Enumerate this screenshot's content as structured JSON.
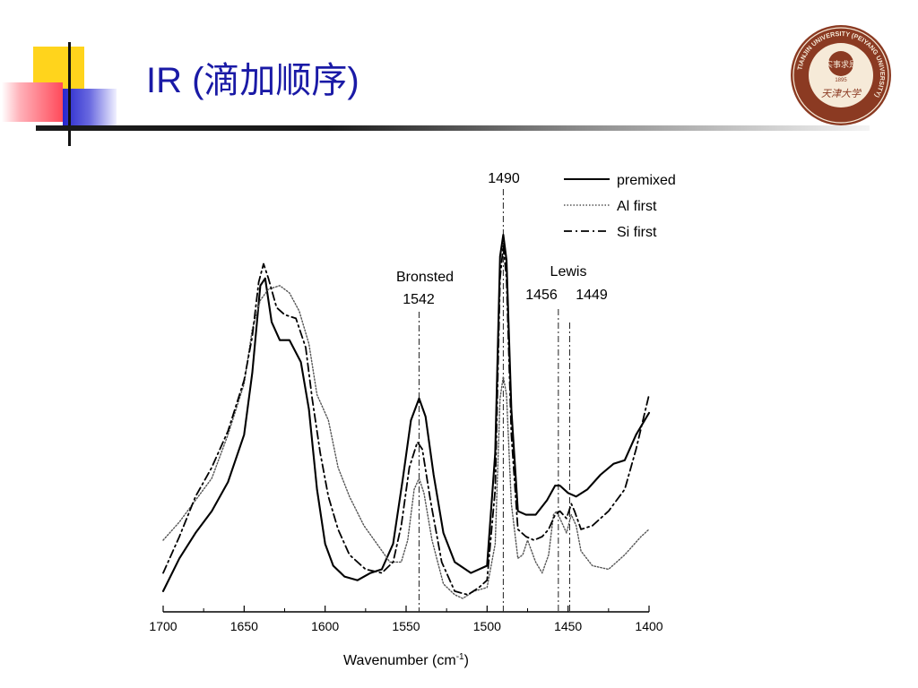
{
  "slide": {
    "title": "IR (滴加顺序)",
    "logo": {
      "ring_text": "TIANJIN UNIVERSITY (PEIYANG UNIVERSITY)",
      "year": "1895",
      "motto": "实事求是",
      "calligraphy": "天津大学",
      "colors": {
        "ring": "#8b3a22",
        "inner": "#f6ead8"
      }
    },
    "colors": {
      "title": "#1a1aa6",
      "accent_yellow": "#ffd41c",
      "accent_red": "#ff5060",
      "accent_blue": "#3030d0"
    }
  },
  "chart_data": {
    "type": "line",
    "xlabel": "Wavenumber (cm",
    "xlabel_sup": "-1",
    "xlabel_close": ")",
    "xlim": [
      1700,
      1400
    ],
    "ylim": [
      0,
      1
    ],
    "x_reversed": true,
    "grid": false,
    "legend_position": "top-right",
    "x_ticks": [
      {
        "value": 1700,
        "label": "1700"
      },
      {
        "value": 1650,
        "label": "1650"
      },
      {
        "value": 1600,
        "label": "1600"
      },
      {
        "value": 1550,
        "label": "1550"
      },
      {
        "value": 1500,
        "label": "1500"
      },
      {
        "value": 1450,
        "label": "1450"
      },
      {
        "value": 1400,
        "label": "1400"
      }
    ],
    "annotations": [
      {
        "x": 1542,
        "lines": [
          "Bronsted",
          "1542"
        ]
      },
      {
        "x": 1490,
        "lines": [
          "1490"
        ]
      },
      {
        "x": 1456,
        "lines": [
          "Lewis",
          "1456"
        ]
      },
      {
        "x": 1449,
        "lines": [
          "1449"
        ]
      }
    ],
    "series": [
      {
        "name": "premixed",
        "style": "solid",
        "points": [
          [
            1700,
            0.02
          ],
          [
            1690,
            0.11
          ],
          [
            1680,
            0.18
          ],
          [
            1670,
            0.24
          ],
          [
            1660,
            0.32
          ],
          [
            1650,
            0.45
          ],
          [
            1645,
            0.62
          ],
          [
            1640,
            0.86
          ],
          [
            1637,
            0.88
          ],
          [
            1633,
            0.76
          ],
          [
            1628,
            0.71
          ],
          [
            1622,
            0.71
          ],
          [
            1615,
            0.65
          ],
          [
            1610,
            0.52
          ],
          [
            1605,
            0.3
          ],
          [
            1600,
            0.15
          ],
          [
            1595,
            0.09
          ],
          [
            1588,
            0.06
          ],
          [
            1580,
            0.05
          ],
          [
            1572,
            0.07
          ],
          [
            1565,
            0.08
          ],
          [
            1558,
            0.15
          ],
          [
            1552,
            0.33
          ],
          [
            1547,
            0.49
          ],
          [
            1542,
            0.55
          ],
          [
            1538,
            0.5
          ],
          [
            1533,
            0.34
          ],
          [
            1527,
            0.18
          ],
          [
            1520,
            0.1
          ],
          [
            1510,
            0.07
          ],
          [
            1500,
            0.09
          ],
          [
            1495,
            0.4
          ],
          [
            1492,
            0.94
          ],
          [
            1490,
            1.0
          ],
          [
            1488,
            0.93
          ],
          [
            1485,
            0.52
          ],
          [
            1481,
            0.24
          ],
          [
            1476,
            0.23
          ],
          [
            1470,
            0.23
          ],
          [
            1463,
            0.27
          ],
          [
            1458,
            0.31
          ],
          [
            1455,
            0.31
          ],
          [
            1450,
            0.29
          ],
          [
            1445,
            0.28
          ],
          [
            1438,
            0.3
          ],
          [
            1430,
            0.34
          ],
          [
            1422,
            0.37
          ],
          [
            1415,
            0.38
          ],
          [
            1408,
            0.45
          ],
          [
            1400,
            0.51
          ]
        ]
      },
      {
        "name": "Al first",
        "style": "dotted",
        "points": [
          [
            1700,
            0.16
          ],
          [
            1690,
            0.21
          ],
          [
            1680,
            0.27
          ],
          [
            1670,
            0.33
          ],
          [
            1660,
            0.45
          ],
          [
            1650,
            0.59
          ],
          [
            1645,
            0.74
          ],
          [
            1640,
            0.82
          ],
          [
            1635,
            0.85
          ],
          [
            1628,
            0.86
          ],
          [
            1622,
            0.84
          ],
          [
            1616,
            0.79
          ],
          [
            1610,
            0.7
          ],
          [
            1605,
            0.56
          ],
          [
            1598,
            0.49
          ],
          [
            1592,
            0.36
          ],
          [
            1585,
            0.28
          ],
          [
            1576,
            0.2
          ],
          [
            1568,
            0.15
          ],
          [
            1560,
            0.1
          ],
          [
            1553,
            0.1
          ],
          [
            1549,
            0.16
          ],
          [
            1545,
            0.3
          ],
          [
            1542,
            0.33
          ],
          [
            1539,
            0.29
          ],
          [
            1534,
            0.16
          ],
          [
            1527,
            0.04
          ],
          [
            1520,
            0.01
          ],
          [
            1515,
            0.0
          ],
          [
            1508,
            0.02
          ],
          [
            1500,
            0.03
          ],
          [
            1495,
            0.15
          ],
          [
            1492,
            0.55
          ],
          [
            1490,
            0.61
          ],
          [
            1488,
            0.56
          ],
          [
            1485,
            0.26
          ],
          [
            1481,
            0.11
          ],
          [
            1478,
            0.12
          ],
          [
            1475,
            0.16
          ],
          [
            1470,
            0.1
          ],
          [
            1466,
            0.07
          ],
          [
            1462,
            0.12
          ],
          [
            1459,
            0.23
          ],
          [
            1457,
            0.24
          ],
          [
            1455,
            0.22
          ],
          [
            1451,
            0.18
          ],
          [
            1448,
            0.23
          ],
          [
            1445,
            0.2
          ],
          [
            1442,
            0.13
          ],
          [
            1435,
            0.09
          ],
          [
            1425,
            0.08
          ],
          [
            1415,
            0.12
          ],
          [
            1405,
            0.17
          ],
          [
            1400,
            0.19
          ]
        ]
      },
      {
        "name": "Si first",
        "style": "dashdot",
        "points": [
          [
            1700,
            0.07
          ],
          [
            1690,
            0.17
          ],
          [
            1680,
            0.28
          ],
          [
            1670,
            0.36
          ],
          [
            1660,
            0.46
          ],
          [
            1650,
            0.6
          ],
          [
            1645,
            0.72
          ],
          [
            1641,
            0.87
          ],
          [
            1638,
            0.92
          ],
          [
            1635,
            0.88
          ],
          [
            1630,
            0.8
          ],
          [
            1625,
            0.78
          ],
          [
            1618,
            0.77
          ],
          [
            1612,
            0.69
          ],
          [
            1608,
            0.55
          ],
          [
            1603,
            0.4
          ],
          [
            1598,
            0.28
          ],
          [
            1592,
            0.19
          ],
          [
            1585,
            0.12
          ],
          [
            1575,
            0.08
          ],
          [
            1565,
            0.07
          ],
          [
            1558,
            0.1
          ],
          [
            1553,
            0.2
          ],
          [
            1548,
            0.36
          ],
          [
            1543,
            0.43
          ],
          [
            1540,
            0.41
          ],
          [
            1535,
            0.27
          ],
          [
            1528,
            0.1
          ],
          [
            1520,
            0.02
          ],
          [
            1512,
            0.01
          ],
          [
            1505,
            0.03
          ],
          [
            1500,
            0.05
          ],
          [
            1495,
            0.3
          ],
          [
            1492,
            0.88
          ],
          [
            1490,
            0.97
          ],
          [
            1488,
            0.88
          ],
          [
            1485,
            0.45
          ],
          [
            1481,
            0.19
          ],
          [
            1476,
            0.17
          ],
          [
            1471,
            0.16
          ],
          [
            1466,
            0.17
          ],
          [
            1462,
            0.19
          ],
          [
            1458,
            0.23
          ],
          [
            1455,
            0.24
          ],
          [
            1451,
            0.22
          ],
          [
            1448,
            0.26
          ],
          [
            1446,
            0.24
          ],
          [
            1442,
            0.19
          ],
          [
            1435,
            0.2
          ],
          [
            1425,
            0.24
          ],
          [
            1415,
            0.3
          ],
          [
            1408,
            0.41
          ],
          [
            1400,
            0.56
          ]
        ]
      }
    ]
  }
}
